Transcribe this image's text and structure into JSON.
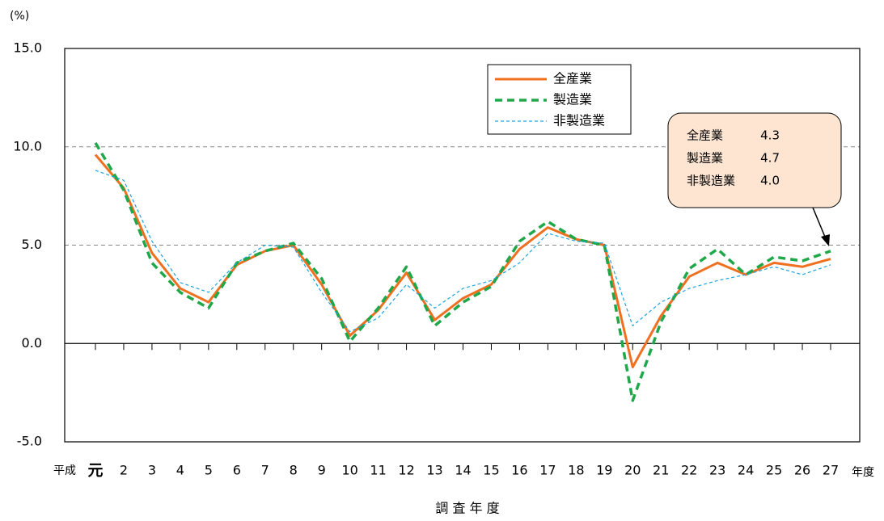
{
  "chart_data": {
    "type": "line",
    "y_unit": "(%)",
    "x_title": "調 査 年 度",
    "x_prefix": "平成",
    "x_suffix": "年度",
    "categories": [
      "元",
      "2",
      "3",
      "4",
      "5",
      "6",
      "7",
      "8",
      "9",
      "10",
      "11",
      "12",
      "13",
      "14",
      "15",
      "16",
      "17",
      "18",
      "19",
      "20",
      "21",
      "22",
      "23",
      "24",
      "25",
      "26",
      "27"
    ],
    "series": [
      {
        "name": "全産業",
        "color": "#f07021",
        "values": [
          9.6,
          7.9,
          4.6,
          2.8,
          2.1,
          4.0,
          4.7,
          5.0,
          3.0,
          0.4,
          1.7,
          3.6,
          1.2,
          2.3,
          3.0,
          4.8,
          5.9,
          5.3,
          5.0,
          -1.2,
          1.4,
          3.4,
          4.1,
          3.5,
          4.1,
          3.9,
          4.3
        ]
      },
      {
        "name": "製造業",
        "color": "#1fa84a",
        "values": [
          10.2,
          7.8,
          4.1,
          2.6,
          1.8,
          4.1,
          4.7,
          5.1,
          3.3,
          0.1,
          1.8,
          3.9,
          0.9,
          2.1,
          2.9,
          5.2,
          6.2,
          5.3,
          5.0,
          -2.9,
          1.1,
          3.8,
          4.8,
          3.5,
          4.4,
          4.2,
          4.7
        ]
      },
      {
        "name": "非製造業",
        "color": "#1aa3e0",
        "values": [
          8.8,
          8.3,
          5.2,
          3.1,
          2.6,
          4.1,
          5.0,
          4.9,
          2.6,
          0.6,
          1.3,
          3.0,
          1.8,
          2.8,
          3.2,
          4.1,
          5.6,
          5.2,
          5.1,
          0.9,
          2.1,
          2.8,
          3.2,
          3.5,
          3.9,
          3.5,
          4.0
        ]
      }
    ],
    "callout_labels": [
      "4.3",
      "4.7",
      "4.0"
    ],
    "ylim": [
      -5,
      15
    ],
    "yticks": [
      {
        "value": -5,
        "label": "-5.0"
      },
      {
        "value": 0,
        "label": "0.0"
      },
      {
        "value": 5,
        "label": "5.0"
      },
      {
        "value": 10,
        "label": "10.0"
      },
      {
        "value": 15,
        "label": "15.0"
      }
    ],
    "grid": true
  }
}
